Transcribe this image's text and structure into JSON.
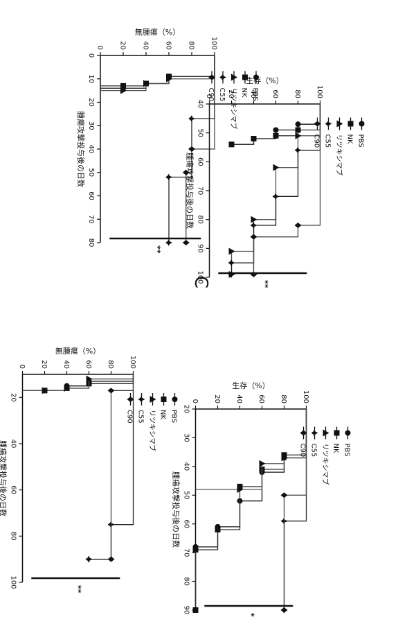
{
  "figure_label": "C",
  "chart_data": [
    {
      "type": "line",
      "xlabel": "腫瘍攻撃投与後の日数",
      "ylabel": "無腫瘍（%）",
      "xlim": [
        0,
        80
      ],
      "ylim": [
        0,
        100
      ],
      "xticks": [
        0,
        10,
        20,
        30,
        40,
        50,
        60,
        70,
        80
      ],
      "yticks": [
        0,
        20,
        40,
        60,
        80,
        100
      ],
      "legend": [
        "PBS",
        "NK",
        "リツキシマブ",
        "C55",
        "C90"
      ],
      "significance": "**",
      "series": [
        {
          "name": "PBS",
          "x": [
            0,
            9,
            12,
            14,
            14
          ],
          "y": [
            100,
            60,
            40,
            20,
            0
          ],
          "marker": "circle"
        },
        {
          "name": "NK",
          "x": [
            0,
            9,
            12,
            13,
            13
          ],
          "y": [
            100,
            60,
            40,
            20,
            0
          ],
          "marker": "square"
        },
        {
          "name": "リツキシマブ",
          "x": [
            0,
            10,
            12,
            15,
            15
          ],
          "y": [
            100,
            60,
            40,
            20,
            0
          ],
          "marker": "triangle"
        },
        {
          "name": "C55",
          "x": [
            0,
            27,
            52,
            80
          ],
          "y": [
            100,
            80,
            60,
            60
          ],
          "marker": "star"
        },
        {
          "name": "C90",
          "x": [
            0,
            40,
            50,
            80
          ],
          "y": [
            100,
            80,
            75,
            75
          ],
          "marker": "diamond"
        }
      ]
    },
    {
      "type": "line",
      "xlabel": "腫瘍攻撃投与後の日数",
      "ylabel": "生存（%）",
      "xlim": [
        40,
        100
      ],
      "ylim": [
        0,
        100
      ],
      "xticks": [
        40,
        50,
        60,
        70,
        80,
        90,
        100
      ],
      "yticks": [
        0,
        20,
        40,
        60,
        80,
        100
      ],
      "legend": [
        "PBS",
        "NK",
        "リツキシマブ",
        "C55",
        "C90"
      ],
      "significance": "**",
      "series": [
        {
          "name": "PBS",
          "x": [
            40,
            47,
            49,
            52,
            54
          ],
          "y": [
            100,
            80,
            60,
            40,
            20
          ],
          "marker": "circle"
        },
        {
          "name": "NK",
          "x": [
            40,
            49,
            51,
            52,
            54
          ],
          "y": [
            100,
            80,
            60,
            40,
            20
          ],
          "marker": "square"
        },
        {
          "name": "リツキシマブ",
          "x": [
            40,
            51,
            62,
            80,
            91,
            99
          ],
          "y": [
            100,
            80,
            60,
            40,
            20,
            20
          ],
          "marker": "triangle"
        },
        {
          "name": "C55",
          "x": [
            40,
            56,
            72,
            82,
            95,
            99
          ],
          "y": [
            100,
            80,
            60,
            40,
            20,
            20
          ],
          "marker": "star"
        },
        {
          "name": "C90",
          "x": [
            40,
            82,
            86,
            99
          ],
          "y": [
            100,
            80,
            40,
            40
          ],
          "marker": "diamond"
        }
      ]
    },
    {
      "type": "line",
      "xlabel": "腫瘍攻撃投与後の日数",
      "ylabel": "無腫瘍（%）",
      "xlim": [
        10,
        100
      ],
      "ylim": [
        0,
        100
      ],
      "xticks": [
        20,
        40,
        60,
        80,
        100
      ],
      "yticks": [
        0,
        20,
        40,
        60,
        80,
        100
      ],
      "legend": [
        "PBS",
        "NK",
        "リツキシマブ",
        "C55",
        "C90"
      ],
      "significance": "**",
      "series": [
        {
          "name": "PBS",
          "x": [
            10,
            13,
            15,
            17,
            17
          ],
          "y": [
            100,
            60,
            40,
            20,
            0
          ],
          "marker": "circle"
        },
        {
          "name": "NK",
          "x": [
            10,
            14,
            16,
            17,
            17
          ],
          "y": [
            100,
            60,
            40,
            20,
            0
          ],
          "marker": "square"
        },
        {
          "name": "リツキシマブ",
          "x": [
            10,
            12,
            16,
            17,
            17
          ],
          "y": [
            100,
            60,
            40,
            20,
            0
          ],
          "marker": "triangle"
        },
        {
          "name": "C55",
          "x": [
            10,
            75,
            90,
            90
          ],
          "y": [
            100,
            80,
            60,
            60
          ],
          "marker": "star"
        },
        {
          "name": "C90",
          "x": [
            10,
            17,
            90
          ],
          "y": [
            100,
            80,
            80
          ],
          "marker": "diamond"
        }
      ]
    },
    {
      "type": "line",
      "xlabel": "腫瘍攻撃投与後の日数",
      "ylabel": "生存（%）",
      "xlim": [
        20,
        90
      ],
      "ylim": [
        0,
        100
      ],
      "xticks": [
        20,
        30,
        40,
        50,
        60,
        70,
        80,
        90
      ],
      "yticks": [
        0,
        20,
        40,
        60,
        80,
        100
      ],
      "legend": [
        "PBS",
        "NK",
        "リツキシマブ",
        "C55",
        "C90"
      ],
      "significance": "**",
      "series": [
        {
          "name": "PBS",
          "x": [
            20,
            37,
            42,
            52,
            61,
            68,
            90
          ],
          "y": [
            100,
            80,
            60,
            40,
            20,
            0,
            0
          ],
          "marker": "circle"
        },
        {
          "name": "NK",
          "x": [
            20,
            36,
            41,
            47,
            62,
            69,
            90
          ],
          "y": [
            100,
            80,
            60,
            40,
            20,
            0,
            0
          ],
          "marker": "square"
        },
        {
          "name": "リツキシマブ",
          "x": [
            20,
            37,
            39,
            48,
            48
          ],
          "y": [
            100,
            80,
            60,
            40,
            0
          ],
          "marker": "triangle"
        },
        {
          "name": "C55",
          "x": [
            20,
            59,
            90
          ],
          "y": [
            100,
            80,
            80
          ],
          "marker": "star"
        },
        {
          "name": "C90",
          "x": [
            20,
            50,
            90
          ],
          "y": [
            100,
            80,
            80
          ],
          "marker": "diamond"
        }
      ]
    }
  ]
}
